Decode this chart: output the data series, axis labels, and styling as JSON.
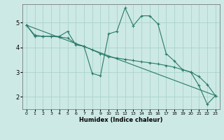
{
  "xlabel": "Humidex (Indice chaleur)",
  "bg_color": "#cce9e5",
  "grid_color": "#aad3ce",
  "line_color": "#2a7a6a",
  "xlim": [
    -0.5,
    23.5
  ],
  "ylim": [
    1.5,
    5.75
  ],
  "xticks": [
    0,
    1,
    2,
    3,
    4,
    5,
    6,
    7,
    8,
    9,
    10,
    11,
    12,
    13,
    14,
    15,
    16,
    17,
    18,
    19,
    20,
    21,
    22,
    23
  ],
  "yticks": [
    2,
    3,
    4,
    5
  ],
  "line1_x": [
    0,
    1,
    2,
    3,
    4,
    5,
    6,
    7,
    8,
    9,
    10,
    11,
    12,
    13,
    14,
    15,
    16,
    17,
    18,
    19,
    20,
    21,
    22,
    23
  ],
  "line1_y": [
    4.9,
    4.45,
    4.45,
    4.45,
    4.45,
    4.65,
    4.1,
    4.05,
    2.95,
    2.85,
    4.55,
    4.65,
    5.6,
    4.88,
    5.28,
    5.28,
    4.95,
    3.75,
    3.45,
    3.1,
    3.0,
    2.45,
    1.7,
    2.05
  ],
  "line2_x": [
    0,
    1,
    2,
    3,
    4,
    5,
    6,
    7,
    8,
    9,
    10,
    11,
    12,
    13,
    14,
    15,
    16,
    17,
    18,
    19,
    20,
    21,
    22,
    23
  ],
  "line2_y": [
    4.9,
    4.5,
    4.45,
    4.45,
    4.42,
    4.38,
    4.15,
    4.05,
    3.9,
    3.75,
    3.62,
    3.57,
    3.52,
    3.47,
    3.42,
    3.38,
    3.33,
    3.27,
    3.2,
    3.1,
    3.0,
    2.82,
    2.5,
    2.05
  ],
  "line3_x": [
    0,
    23
  ],
  "line3_y": [
    4.9,
    2.05
  ]
}
